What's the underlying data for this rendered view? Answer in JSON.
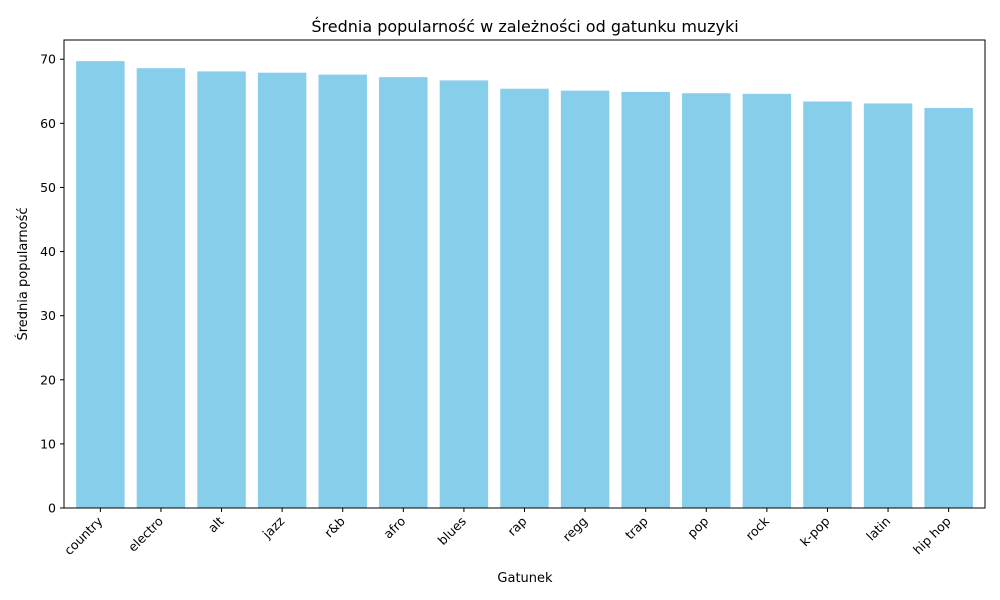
{
  "chart_data": {
    "type": "bar",
    "title": "Średnia popularność w zależności od gatunku muzyki",
    "xlabel": "Gatunek",
    "ylabel": "Średnia popularność",
    "categories": [
      "country",
      "electro",
      "alt",
      "jazz",
      "r&b",
      "afro",
      "blues",
      "rap",
      "regg",
      "trap",
      "pop",
      "rock",
      "k-pop",
      "latin",
      "hip hop"
    ],
    "values": [
      69.7,
      68.6,
      68.1,
      67.9,
      67.6,
      67.2,
      66.7,
      65.4,
      65.1,
      64.9,
      64.7,
      64.6,
      63.4,
      63.1,
      62.4
    ],
    "ylim": [
      0,
      73
    ],
    "yticks": [
      0,
      10,
      20,
      30,
      40,
      50,
      60,
      70
    ],
    "color": "#87ceeb",
    "grid": false,
    "legend": "none"
  }
}
